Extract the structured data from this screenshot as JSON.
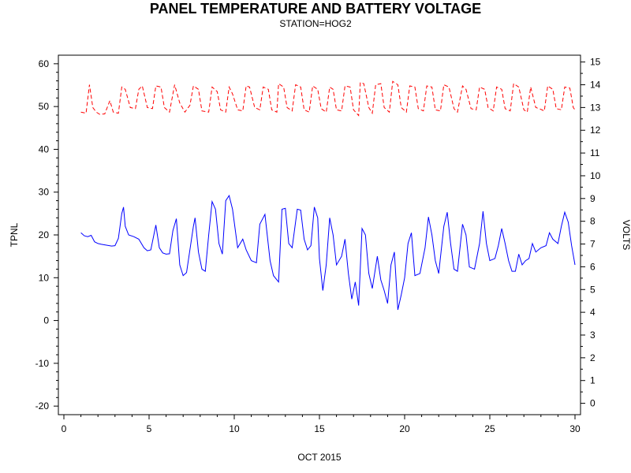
{
  "chart_data": {
    "type": "line",
    "title": "PANEL TEMPERATURE AND BATTERY VOLTAGE",
    "subtitle": "STATION=HOG2",
    "xlabel": "OCT 2015",
    "ylabel_left": "TPNL",
    "ylabel_right": "VOLTS",
    "xlim": [
      0,
      30
    ],
    "ylim_left": [
      -22,
      62
    ],
    "ylim_right": [
      -0.5,
      15.3
    ],
    "x_ticks": [
      0,
      5,
      10,
      15,
      20,
      25,
      30
    ],
    "y_ticks_left": [
      -20,
      -10,
      0,
      10,
      20,
      30,
      40,
      50,
      60
    ],
    "y_ticks_right": [
      0,
      1,
      2,
      3,
      4,
      5,
      6,
      7,
      8,
      9,
      10,
      11,
      12,
      13,
      14,
      15
    ],
    "grid": false,
    "series": [
      {
        "axis": "left",
        "color": "#0000ff",
        "style": "solid",
        "points": [
          [
            1.0,
            20.5
          ],
          [
            1.2,
            19.8
          ],
          [
            1.4,
            19.6
          ],
          [
            1.6,
            19.9
          ],
          [
            1.8,
            18.4
          ],
          [
            2.0,
            18.0
          ],
          [
            2.2,
            17.8
          ],
          [
            2.5,
            17.6
          ],
          [
            2.8,
            17.4
          ],
          [
            3.0,
            17.5
          ],
          [
            3.2,
            19.2
          ],
          [
            3.4,
            25.0
          ],
          [
            3.5,
            26.5
          ],
          [
            3.6,
            22.0
          ],
          [
            3.8,
            20.0
          ],
          [
            4.1,
            19.6
          ],
          [
            4.4,
            19.0
          ],
          [
            4.7,
            17.0
          ],
          [
            4.9,
            16.3
          ],
          [
            5.1,
            16.5
          ],
          [
            5.4,
            22.3
          ],
          [
            5.6,
            17.0
          ],
          [
            5.8,
            15.8
          ],
          [
            6.0,
            15.5
          ],
          [
            6.2,
            15.6
          ],
          [
            6.4,
            21.0
          ],
          [
            6.6,
            23.8
          ],
          [
            6.8,
            13.0
          ],
          [
            7.0,
            10.5
          ],
          [
            7.2,
            11.2
          ],
          [
            7.6,
            22.0
          ],
          [
            7.7,
            24.0
          ],
          [
            7.9,
            16.0
          ],
          [
            8.1,
            12.0
          ],
          [
            8.3,
            11.5
          ],
          [
            8.5,
            20.0
          ],
          [
            8.7,
            27.8
          ],
          [
            8.9,
            26.0
          ],
          [
            9.1,
            18.0
          ],
          [
            9.3,
            15.5
          ],
          [
            9.5,
            28.0
          ],
          [
            9.7,
            29.2
          ],
          [
            9.9,
            26.0
          ],
          [
            10.2,
            17.0
          ],
          [
            10.5,
            19.0
          ],
          [
            10.7,
            16.5
          ],
          [
            11.0,
            14.0
          ],
          [
            11.3,
            13.5
          ],
          [
            11.5,
            22.5
          ],
          [
            11.8,
            24.8
          ],
          [
            12.1,
            14.0
          ],
          [
            12.3,
            10.5
          ],
          [
            12.6,
            9.0
          ],
          [
            12.8,
            26.0
          ],
          [
            13.0,
            26.2
          ],
          [
            13.2,
            18.0
          ],
          [
            13.4,
            17.0
          ],
          [
            13.7,
            26.0
          ],
          [
            13.9,
            25.8
          ],
          [
            14.1,
            19.0
          ],
          [
            14.3,
            16.5
          ],
          [
            14.5,
            17.5
          ],
          [
            14.7,
            26.5
          ],
          [
            14.9,
            24.0
          ],
          [
            15.0,
            14.5
          ],
          [
            15.2,
            7.0
          ],
          [
            15.4,
            13.0
          ],
          [
            15.6,
            24.0
          ],
          [
            15.8,
            20.0
          ],
          [
            16.0,
            13.0
          ],
          [
            16.3,
            15.0
          ],
          [
            16.5,
            19.0
          ],
          [
            16.7,
            11.0
          ],
          [
            16.9,
            5.0
          ],
          [
            17.1,
            9.0
          ],
          [
            17.3,
            3.5
          ],
          [
            17.5,
            21.5
          ],
          [
            17.7,
            20.0
          ],
          [
            17.9,
            11.0
          ],
          [
            18.1,
            7.5
          ],
          [
            18.4,
            15.0
          ],
          [
            18.6,
            9.5
          ],
          [
            18.8,
            7.0
          ],
          [
            19.0,
            4.0
          ],
          [
            19.2,
            13.0
          ],
          [
            19.4,
            16.0
          ],
          [
            19.6,
            2.5
          ],
          [
            19.8,
            6.0
          ],
          [
            20.0,
            10.0
          ],
          [
            20.2,
            18.0
          ],
          [
            20.4,
            20.5
          ],
          [
            20.6,
            10.5
          ],
          [
            20.9,
            11.0
          ],
          [
            21.2,
            17.0
          ],
          [
            21.4,
            24.2
          ],
          [
            21.6,
            20.0
          ],
          [
            21.8,
            14.0
          ],
          [
            22.0,
            11.0
          ],
          [
            22.3,
            22.0
          ],
          [
            22.5,
            25.3
          ],
          [
            22.7,
            18.0
          ],
          [
            22.9,
            12.0
          ],
          [
            23.1,
            11.5
          ],
          [
            23.4,
            22.5
          ],
          [
            23.6,
            20.0
          ],
          [
            23.8,
            12.5
          ],
          [
            24.1,
            12.0
          ],
          [
            24.4,
            18.0
          ],
          [
            24.6,
            25.5
          ],
          [
            24.8,
            18.0
          ],
          [
            25.0,
            14.0
          ],
          [
            25.3,
            14.5
          ],
          [
            25.5,
            17.5
          ],
          [
            25.7,
            21.5
          ],
          [
            25.9,
            18.0
          ],
          [
            26.1,
            14.0
          ],
          [
            26.3,
            11.5
          ],
          [
            26.5,
            11.5
          ],
          [
            26.7,
            15.5
          ],
          [
            26.9,
            13.0
          ],
          [
            27.1,
            14.0
          ],
          [
            27.3,
            14.5
          ],
          [
            27.5,
            18.0
          ],
          [
            27.7,
            16.0
          ],
          [
            28.0,
            17.0
          ],
          [
            28.3,
            17.5
          ],
          [
            28.5,
            20.5
          ],
          [
            28.7,
            19.0
          ],
          [
            29.0,
            18.0
          ],
          [
            29.2,
            22.0
          ],
          [
            29.4,
            25.3
          ],
          [
            29.6,
            23.0
          ],
          [
            29.8,
            17.5
          ],
          [
            30.0,
            13.0
          ]
        ]
      },
      {
        "axis": "right",
        "color": "#ff0000",
        "style": "dashed",
        "points": [
          [
            1.0,
            12.8
          ],
          [
            1.3,
            12.75
          ],
          [
            1.5,
            14.0
          ],
          [
            1.7,
            13.0
          ],
          [
            1.9,
            12.8
          ],
          [
            2.1,
            12.7
          ],
          [
            2.4,
            12.72
          ],
          [
            2.7,
            13.3
          ],
          [
            2.9,
            12.8
          ],
          [
            3.2,
            12.75
          ],
          [
            3.4,
            13.9
          ],
          [
            3.6,
            13.8
          ],
          [
            3.9,
            13.0
          ],
          [
            4.2,
            12.95
          ],
          [
            4.4,
            13.8
          ],
          [
            4.6,
            13.95
          ],
          [
            4.9,
            13.0
          ],
          [
            5.2,
            12.95
          ],
          [
            5.4,
            13.95
          ],
          [
            5.7,
            13.9
          ],
          [
            5.9,
            13.0
          ],
          [
            6.2,
            12.8
          ],
          [
            6.5,
            14.0
          ],
          [
            6.8,
            13.2
          ],
          [
            7.1,
            12.8
          ],
          [
            7.4,
            13.1
          ],
          [
            7.6,
            13.95
          ],
          [
            7.9,
            13.8
          ],
          [
            8.1,
            12.85
          ],
          [
            8.5,
            12.8
          ],
          [
            8.7,
            13.9
          ],
          [
            9.0,
            13.7
          ],
          [
            9.2,
            12.9
          ],
          [
            9.5,
            12.8
          ],
          [
            9.7,
            13.9
          ],
          [
            9.9,
            13.6
          ],
          [
            10.2,
            12.9
          ],
          [
            10.5,
            12.85
          ],
          [
            10.7,
            13.95
          ],
          [
            10.9,
            13.9
          ],
          [
            11.2,
            13.0
          ],
          [
            11.5,
            12.9
          ],
          [
            11.7,
            13.9
          ],
          [
            12.0,
            13.8
          ],
          [
            12.2,
            12.9
          ],
          [
            12.5,
            12.8
          ],
          [
            12.6,
            14.05
          ],
          [
            12.9,
            13.9
          ],
          [
            13.1,
            13.0
          ],
          [
            13.4,
            12.85
          ],
          [
            13.6,
            14.0
          ],
          [
            13.9,
            13.9
          ],
          [
            14.1,
            12.9
          ],
          [
            14.4,
            12.8
          ],
          [
            14.6,
            13.95
          ],
          [
            14.9,
            13.8
          ],
          [
            15.1,
            12.95
          ],
          [
            15.4,
            12.8
          ],
          [
            15.6,
            13.9
          ],
          [
            15.8,
            13.8
          ],
          [
            16.0,
            12.9
          ],
          [
            16.3,
            12.85
          ],
          [
            16.5,
            13.95
          ],
          [
            16.8,
            13.9
          ],
          [
            17.0,
            12.9
          ],
          [
            17.3,
            12.65
          ],
          [
            17.4,
            14.1
          ],
          [
            17.6,
            14.05
          ],
          [
            17.9,
            13.0
          ],
          [
            18.1,
            12.75
          ],
          [
            18.3,
            14.0
          ],
          [
            18.6,
            14.05
          ],
          [
            18.8,
            13.0
          ],
          [
            19.1,
            12.8
          ],
          [
            19.3,
            14.15
          ],
          [
            19.6,
            14.0
          ],
          [
            19.8,
            13.0
          ],
          [
            20.1,
            12.8
          ],
          [
            20.3,
            13.95
          ],
          [
            20.6,
            13.9
          ],
          [
            20.8,
            12.95
          ],
          [
            21.1,
            12.85
          ],
          [
            21.3,
            13.95
          ],
          [
            21.6,
            13.9
          ],
          [
            21.8,
            12.9
          ],
          [
            22.1,
            12.85
          ],
          [
            22.3,
            14.0
          ],
          [
            22.6,
            13.9
          ],
          [
            22.9,
            12.95
          ],
          [
            23.1,
            12.8
          ],
          [
            23.4,
            13.95
          ],
          [
            23.6,
            13.8
          ],
          [
            23.9,
            12.95
          ],
          [
            24.2,
            12.9
          ],
          [
            24.4,
            13.9
          ],
          [
            24.7,
            13.8
          ],
          [
            24.9,
            13.0
          ],
          [
            25.2,
            12.85
          ],
          [
            25.4,
            13.9
          ],
          [
            25.7,
            13.8
          ],
          [
            25.9,
            12.95
          ],
          [
            26.2,
            12.85
          ],
          [
            26.4,
            14.05
          ],
          [
            26.7,
            13.9
          ],
          [
            27.0,
            12.9
          ],
          [
            27.2,
            12.8
          ],
          [
            27.4,
            13.9
          ],
          [
            27.7,
            13.0
          ],
          [
            27.9,
            12.95
          ],
          [
            28.2,
            12.85
          ],
          [
            28.4,
            13.95
          ],
          [
            28.7,
            13.8
          ],
          [
            28.9,
            12.95
          ],
          [
            29.2,
            12.9
          ],
          [
            29.4,
            13.9
          ],
          [
            29.7,
            13.85
          ],
          [
            29.9,
            13.0
          ],
          [
            30.0,
            12.9
          ]
        ]
      }
    ]
  }
}
